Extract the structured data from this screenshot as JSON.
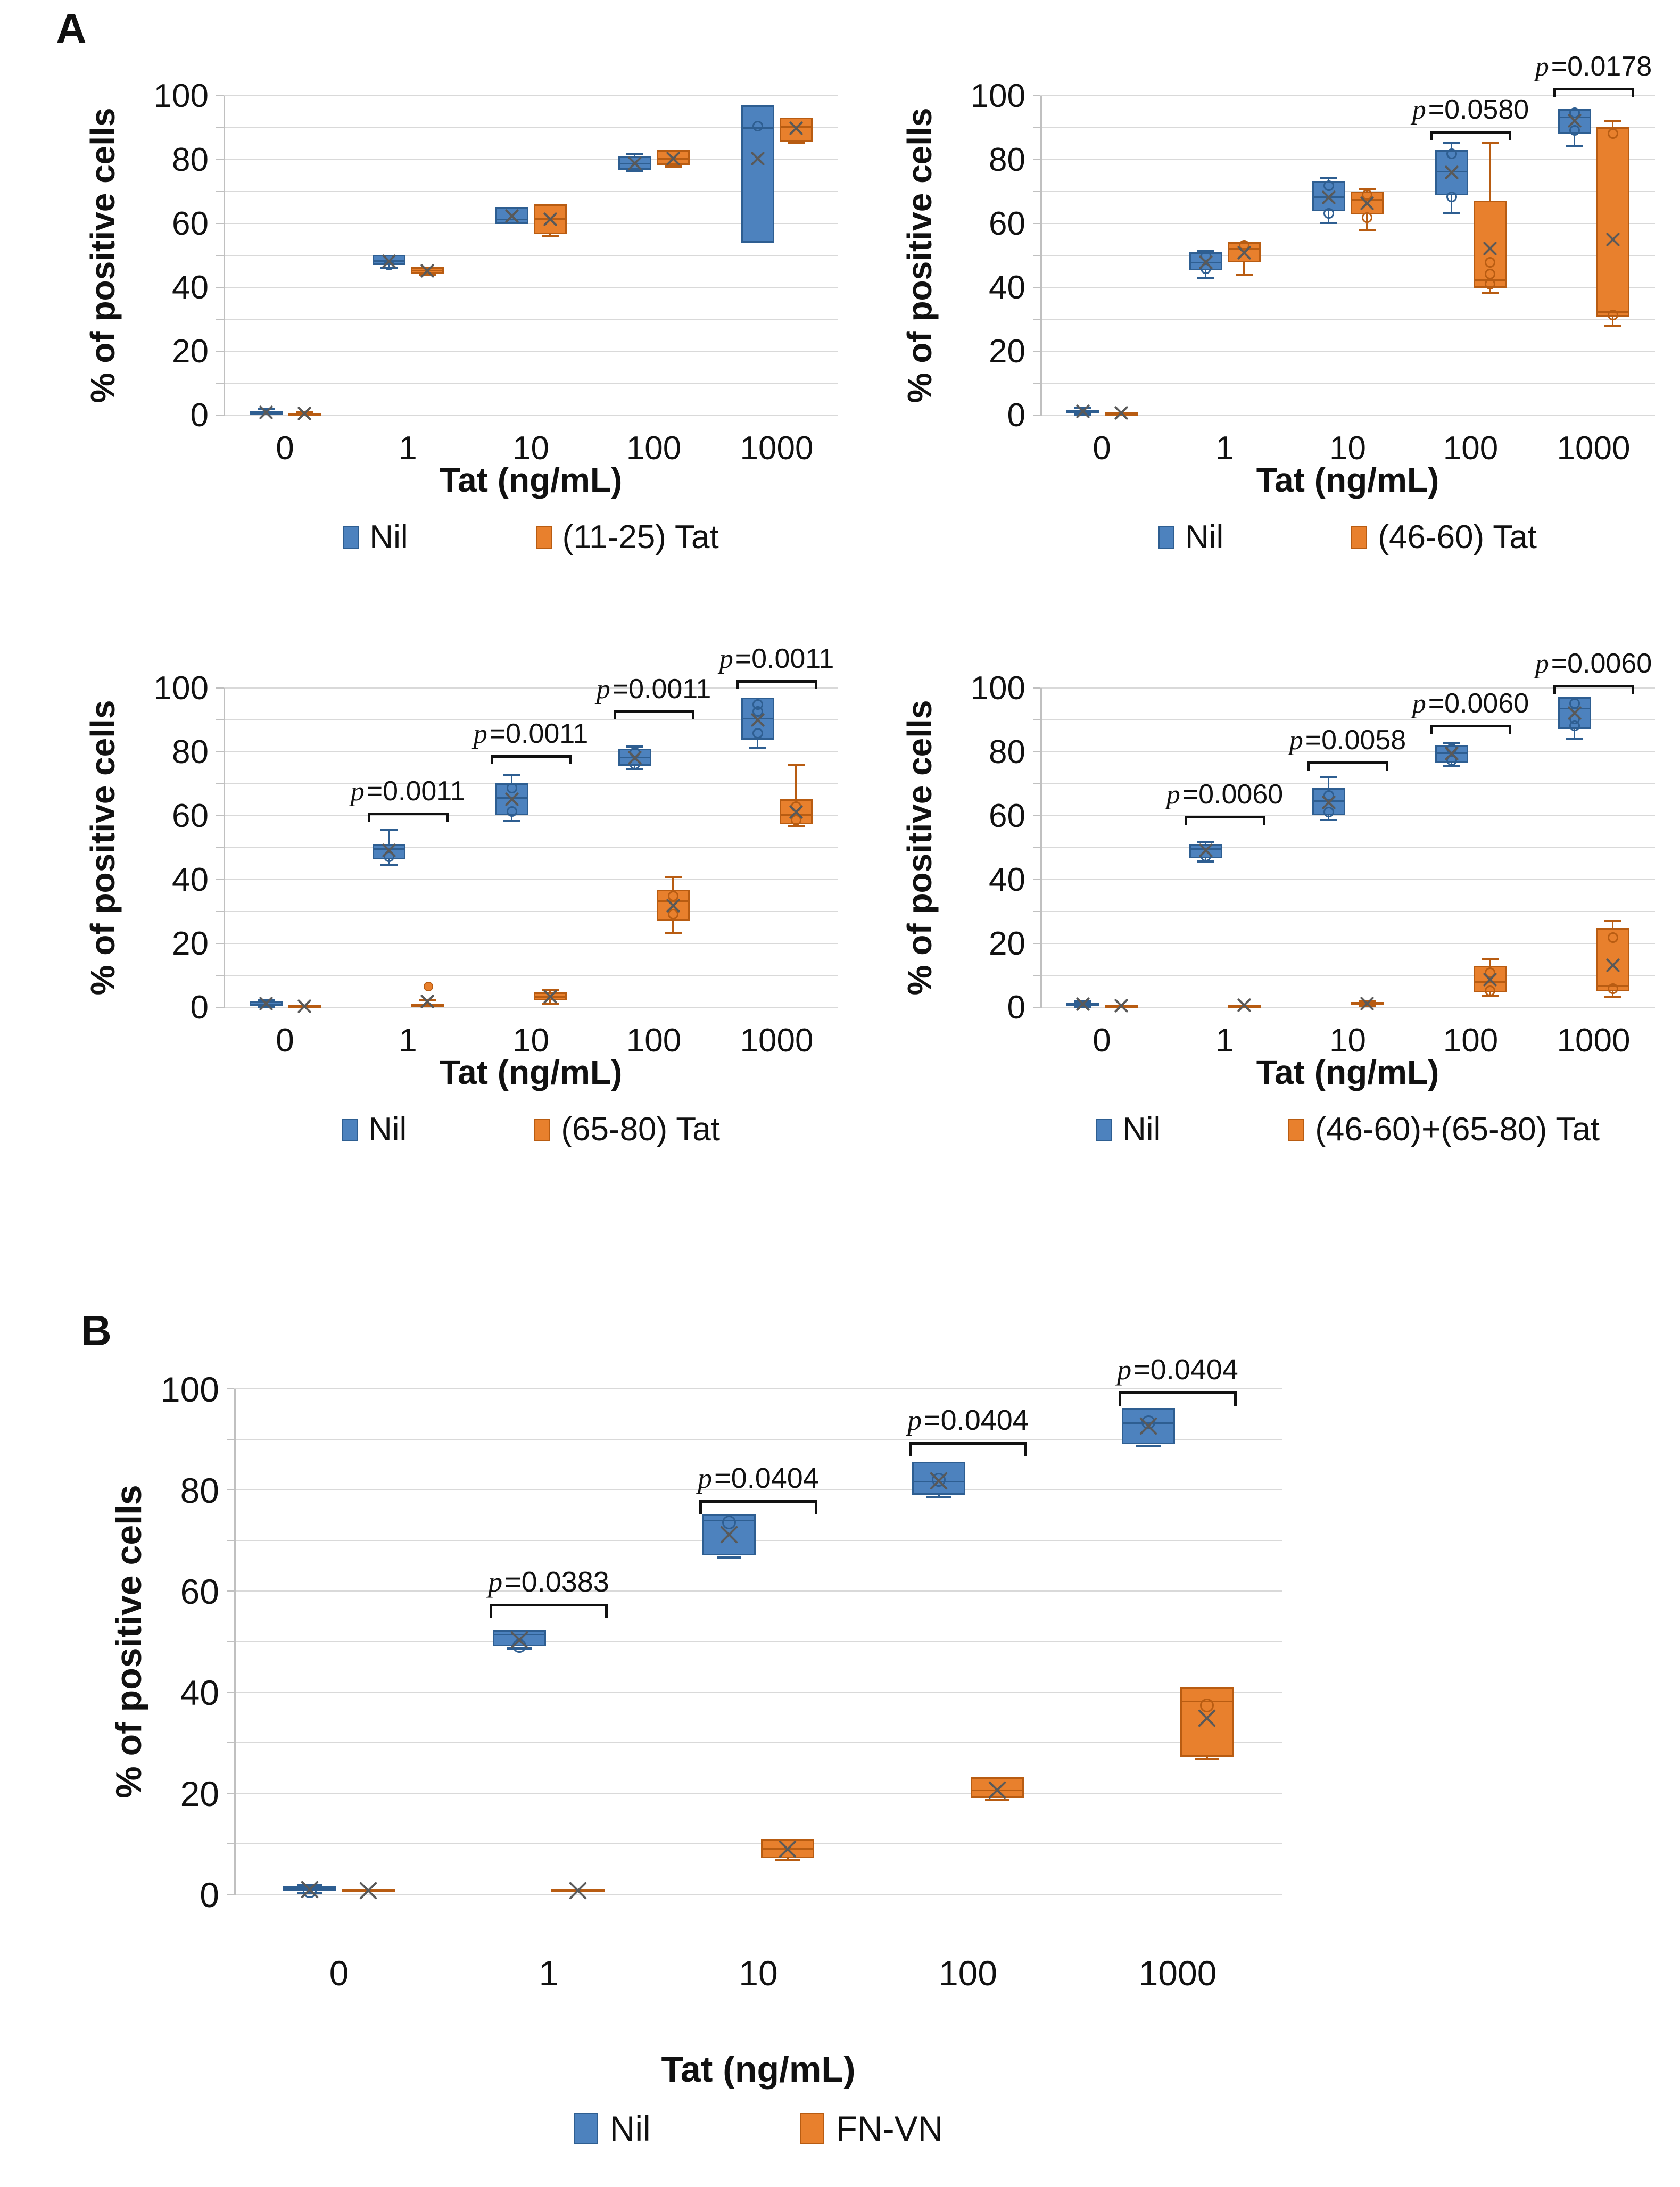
{
  "figure": {
    "section_a_label": "A",
    "section_b_label": "B"
  },
  "colors": {
    "blue_fill": "#4d82be",
    "blue_edge": "#2e5e91",
    "orange_fill": "#e8802d",
    "orange_edge": "#b85c12",
    "grid": "#d9d9d9",
    "axis_line": "#c0c0c0",
    "text": "#111111",
    "mean_marker": "#595959",
    "bracket": "#111111"
  },
  "chart_data": [
    {
      "id": "a1",
      "type": "box",
      "section": "A",
      "xlabel": "Tat (ng/mL)",
      "ylabel": "% of positive cells",
      "ylim": [
        0,
        100
      ],
      "yticks": [
        0,
        20,
        40,
        60,
        80,
        100
      ],
      "grid_step": 10,
      "legend_position": "bottom",
      "categories": [
        "0",
        "1",
        "10",
        "100",
        "1000"
      ],
      "series": [
        {
          "name": "Nil",
          "color": "blue",
          "boxes": [
            {
              "lo": 0.0,
              "q1": 0.2,
              "med": 0.8,
              "q3": 1.4,
              "hi": 1.9,
              "mean": 0.8,
              "points": [],
              "outliers": []
            },
            {
              "lo": 46.2,
              "q1": 47.0,
              "med": 48.3,
              "q3": 50.2,
              "hi": 50.2,
              "mean": 48.2,
              "points": [
                47.0
              ],
              "outliers": []
            },
            {
              "lo": 59.8,
              "q1": 59.8,
              "med": 61.2,
              "q3": 65.2,
              "hi": 65.2,
              "mean": 62.3,
              "points": [],
              "outliers": []
            },
            {
              "lo": 76.3,
              "q1": 76.8,
              "med": 78.8,
              "q3": 81.2,
              "hi": 81.6,
              "mean": 78.9,
              "points": [],
              "outliers": []
            },
            {
              "lo": 54.0,
              "q1": 54.0,
              "med": 90.0,
              "q3": 97.0,
              "hi": 97.0,
              "mean": 80.3,
              "points": [
                90.5
              ],
              "outliers": []
            }
          ]
        },
        {
          "name": "(11-25) Tat",
          "color": "orange",
          "boxes": [
            {
              "lo": 0.0,
              "q1": 0.1,
              "med": 0.4,
              "q3": 0.7,
              "hi": 1.0,
              "mean": 0.5,
              "points": [],
              "outliers": []
            },
            {
              "lo": 43.8,
              "q1": 44.4,
              "med": 45.3,
              "q3": 46.4,
              "hi": 46.4,
              "mean": 45.2,
              "points": [],
              "outliers": []
            },
            {
              "lo": 56.2,
              "q1": 56.6,
              "med": 61.5,
              "q3": 66.0,
              "hi": 66.0,
              "mean": 61.4,
              "points": [],
              "outliers": []
            },
            {
              "lo": 77.9,
              "q1": 78.3,
              "med": 80.3,
              "q3": 83.0,
              "hi": 83.0,
              "mean": 80.4,
              "points": [],
              "outliers": []
            },
            {
              "lo": 85.2,
              "q1": 85.6,
              "med": 90.2,
              "q3": 93.2,
              "hi": 93.2,
              "mean": 89.8,
              "points": [],
              "outliers": []
            }
          ]
        }
      ],
      "pvalues": []
    },
    {
      "id": "a2",
      "type": "box",
      "section": "A",
      "xlabel": "Tat (ng/mL)",
      "ylabel": "% of positive cells",
      "ylim": [
        0,
        100
      ],
      "yticks": [
        0,
        20,
        40,
        60,
        80,
        100
      ],
      "grid_step": 10,
      "legend_position": "bottom",
      "categories": [
        "0",
        "1",
        "10",
        "100",
        "1000"
      ],
      "series": [
        {
          "name": "Nil",
          "color": "blue",
          "boxes": [
            {
              "lo": 0.2,
              "q1": 0.5,
              "med": 1.1,
              "q3": 1.7,
              "hi": 2.1,
              "mean": 1.1,
              "points": [],
              "outliers": []
            },
            {
              "lo": 43.0,
              "q1": 45.4,
              "med": 47.8,
              "q3": 51.0,
              "hi": 51.4,
              "mean": 47.9,
              "points": [
                49.9,
                45.9
              ],
              "outliers": []
            },
            {
              "lo": 60.2,
              "q1": 63.8,
              "med": 68.2,
              "q3": 73.4,
              "hi": 74.2,
              "mean": 68.2,
              "points": [
                71.8,
                63.2
              ],
              "outliers": []
            },
            {
              "lo": 63.2,
              "q1": 68.8,
              "med": 76.2,
              "q3": 83.0,
              "hi": 85.2,
              "mean": 76.0,
              "points": [
                81.8,
                68.4
              ],
              "outliers": []
            },
            {
              "lo": 84.2,
              "q1": 88.2,
              "med": 93.2,
              "q3": 95.8,
              "hi": 95.8,
              "mean": 92.1,
              "points": [
                94.6,
                89.2
              ],
              "outliers": []
            }
          ]
        },
        {
          "name": "(46-60) Tat",
          "color": "orange",
          "boxes": [
            {
              "lo": 0.0,
              "q1": 0.2,
              "med": 0.5,
              "q3": 0.9,
              "hi": 1.1,
              "mean": 0.6,
              "points": [],
              "outliers": []
            },
            {
              "lo": 44.0,
              "q1": 47.9,
              "med": 52.1,
              "q3": 54.2,
              "hi": 54.2,
              "mean": 50.9,
              "points": [
                53.2
              ],
              "outliers": []
            },
            {
              "lo": 57.8,
              "q1": 62.8,
              "med": 67.4,
              "q3": 70.0,
              "hi": 70.6,
              "mean": 66.3,
              "points": [
                69.0,
                61.8
              ],
              "outliers": []
            },
            {
              "lo": 38.4,
              "q1": 39.8,
              "med": 42.2,
              "q3": 67.2,
              "hi": 85.2,
              "mean": 52.2,
              "points": [
                47.8,
                44.2,
                41.0
              ],
              "outliers": []
            },
            {
              "lo": 27.8,
              "q1": 30.8,
              "med": 32.2,
              "q3": 90.2,
              "hi": 92.2,
              "mean": 55.0,
              "points": [
                88.2,
                31.4
              ],
              "outliers": []
            }
          ]
        }
      ],
      "pvalues": [
        {
          "cat_index": 3,
          "label": "p=0.0580",
          "y": 89.0
        },
        {
          "cat_index": 4,
          "label": "p=0.0178",
          "y": 102.5
        }
      ]
    },
    {
      "id": "a3",
      "type": "box",
      "section": "A",
      "xlabel": "Tat (ng/mL)",
      "ylabel": "% of positive cells",
      "ylim": [
        0,
        100
      ],
      "yticks": [
        0,
        20,
        40,
        60,
        80,
        100
      ],
      "grid_step": 10,
      "legend_position": "bottom",
      "categories": [
        "0",
        "1",
        "10",
        "100",
        "1000"
      ],
      "series": [
        {
          "name": "Nil",
          "color": "blue",
          "boxes": [
            {
              "lo": 0.0,
              "q1": 0.3,
              "med": 1.0,
              "q3": 1.8,
              "hi": 2.3,
              "mean": 1.1,
              "points": [],
              "outliers": []
            },
            {
              "lo": 44.6,
              "q1": 46.4,
              "med": 49.6,
              "q3": 51.2,
              "hi": 55.6,
              "mean": 49.2,
              "points": [
                47.2
              ],
              "outliers": []
            },
            {
              "lo": 58.4,
              "q1": 60.2,
              "med": 65.6,
              "q3": 70.2,
              "hi": 72.6,
              "mean": 65.2,
              "points": [
                68.6,
                61.4
              ],
              "outliers": []
            },
            {
              "lo": 74.6,
              "q1": 75.6,
              "med": 78.2,
              "q3": 81.0,
              "hi": 81.6,
              "mean": 78.1,
              "points": [
                79.8,
                76.2
              ],
              "outliers": []
            },
            {
              "lo": 81.4,
              "q1": 83.8,
              "med": 90.4,
              "q3": 97.0,
              "hi": 97.0,
              "mean": 90.0,
              "points": [
                94.8,
                92.6,
                85.8
              ],
              "outliers": []
            }
          ]
        },
        {
          "name": "(65-80) Tat",
          "color": "orange",
          "boxes": [
            {
              "lo": 0.0,
              "q1": 0.1,
              "med": 0.3,
              "q3": 0.6,
              "hi": 0.8,
              "mean": 0.4,
              "points": [],
              "outliers": []
            },
            {
              "lo": 0.0,
              "q1": 0.2,
              "med": 0.7,
              "q3": 1.1,
              "hi": 2.3,
              "mean": 1.9,
              "points": [],
              "outliers": [
                6.8
              ]
            },
            {
              "lo": 1.2,
              "q1": 2.1,
              "med": 3.3,
              "q3": 4.6,
              "hi": 5.4,
              "mean": 3.3,
              "points": [],
              "outliers": []
            },
            {
              "lo": 23.2,
              "q1": 27.2,
              "med": 33.2,
              "q3": 36.8,
              "hi": 40.8,
              "mean": 31.8,
              "points": [
                34.8,
                29.2
              ],
              "outliers": []
            },
            {
              "lo": 56.8,
              "q1": 57.4,
              "med": 60.2,
              "q3": 65.2,
              "hi": 75.8,
              "mean": 61.2,
              "points": [
                62.8,
                58.6
              ],
              "outliers": []
            }
          ]
        }
      ],
      "pvalues": [
        {
          "cat_index": 1,
          "label": "p=0.0011",
          "y": 61.0
        },
        {
          "cat_index": 2,
          "label": "p=0.0011",
          "y": 79.0
        },
        {
          "cat_index": 3,
          "label": "p=0.0011",
          "y": 93.0
        },
        {
          "cat_index": 4,
          "label": "p=0.0011",
          "y": 102.5
        }
      ]
    },
    {
      "id": "a4",
      "type": "box",
      "section": "A",
      "xlabel": "Tat (ng/mL)",
      "ylabel": "% of positive cells",
      "ylim": [
        0,
        100
      ],
      "yticks": [
        0,
        20,
        40,
        60,
        80,
        100
      ],
      "grid_step": 10,
      "legend_position": "bottom",
      "categories": [
        "0",
        "1",
        "10",
        "100",
        "1000"
      ],
      "series": [
        {
          "name": "Nil",
          "color": "blue",
          "boxes": [
            {
              "lo": 0.2,
              "q1": 0.5,
              "med": 1.0,
              "q3": 1.5,
              "hi": 1.9,
              "mean": 1.0,
              "points": [],
              "outliers": []
            },
            {
              "lo": 45.6,
              "q1": 46.6,
              "med": 49.6,
              "q3": 51.2,
              "hi": 51.6,
              "mean": 49.1,
              "points": [
                47.4
              ],
              "outliers": []
            },
            {
              "lo": 58.6,
              "q1": 60.2,
              "med": 64.6,
              "q3": 68.6,
              "hi": 72.2,
              "mean": 64.2,
              "points": [
                66.4,
                61.2
              ],
              "outliers": []
            },
            {
              "lo": 75.6,
              "q1": 76.6,
              "med": 79.6,
              "q3": 82.0,
              "hi": 82.6,
              "mean": 79.5,
              "points": [
                81.0,
                77.4
              ],
              "outliers": []
            },
            {
              "lo": 84.2,
              "q1": 87.2,
              "med": 93.6,
              "q3": 97.2,
              "hi": 97.2,
              "mean": 92.2,
              "points": [
                95.2,
                90.4,
                88.2
              ],
              "outliers": []
            }
          ]
        },
        {
          "name": "(46-60)+(65-80) Tat",
          "color": "orange",
          "boxes": [
            {
              "lo": 0.0,
              "q1": 0.1,
              "med": 0.4,
              "q3": 0.7,
              "hi": 0.9,
              "mean": 0.5,
              "points": [],
              "outliers": []
            },
            {
              "lo": 0.0,
              "q1": 0.2,
              "med": 0.5,
              "q3": 0.8,
              "hi": 1.0,
              "mean": 0.6,
              "points": [],
              "outliers": []
            },
            {
              "lo": 0.5,
              "q1": 0.8,
              "med": 1.2,
              "q3": 1.6,
              "hi": 2.0,
              "mean": 1.2,
              "points": [],
              "outliers": []
            },
            {
              "lo": 3.6,
              "q1": 4.6,
              "med": 8.0,
              "q3": 13.0,
              "hi": 15.2,
              "mean": 8.6,
              "points": [
                10.8,
                5.2
              ],
              "outliers": []
            },
            {
              "lo": 3.2,
              "q1": 5.0,
              "med": 6.6,
              "q3": 24.8,
              "hi": 27.0,
              "mean": 13.2,
              "points": [
                21.8,
                5.8
              ],
              "outliers": []
            }
          ]
        }
      ],
      "pvalues": [
        {
          "cat_index": 1,
          "label": "p=0.0060",
          "y": 60.0
        },
        {
          "cat_index": 2,
          "label": "p=0.0058",
          "y": 77.0
        },
        {
          "cat_index": 3,
          "label": "p=0.0060",
          "y": 88.5
        },
        {
          "cat_index": 4,
          "label": "p=0.0060",
          "y": 101.0
        }
      ]
    },
    {
      "id": "b",
      "type": "box",
      "section": "B",
      "xlabel": "Tat (ng/mL)",
      "ylabel": "% of positive cells",
      "ylim": [
        0,
        100
      ],
      "yticks": [
        0,
        20,
        40,
        60,
        80,
        100
      ],
      "grid_step": 10,
      "legend_position": "bottom",
      "categories": [
        "0",
        "1",
        "10",
        "100",
        "1000"
      ],
      "series": [
        {
          "name": "Nil",
          "color": "blue",
          "boxes": [
            {
              "lo": 0.3,
              "q1": 0.6,
              "med": 1.1,
              "q3": 1.6,
              "hi": 1.9,
              "mean": 1.0,
              "points": [
                0.6
              ],
              "outliers": []
            },
            {
              "lo": 48.6,
              "q1": 49.0,
              "med": 51.4,
              "q3": 52.2,
              "hi": 52.2,
              "mean": 50.3,
              "points": [
                49.2
              ],
              "outliers": []
            },
            {
              "lo": 66.6,
              "q1": 67.0,
              "med": 74.0,
              "q3": 75.2,
              "hi": 75.2,
              "mean": 71.2,
              "points": [
                73.6
              ],
              "outliers": []
            },
            {
              "lo": 78.6,
              "q1": 79.0,
              "med": 81.6,
              "q3": 85.6,
              "hi": 85.6,
              "mean": 81.8,
              "points": [
                82.0
              ],
              "outliers": []
            },
            {
              "lo": 88.6,
              "q1": 89.0,
              "med": 93.2,
              "q3": 96.2,
              "hi": 96.2,
              "mean": 92.6,
              "points": [
                93.4
              ],
              "outliers": []
            }
          ]
        },
        {
          "name": "FN-VN",
          "color": "orange",
          "boxes": [
            {
              "lo": 0.2,
              "q1": 0.4,
              "med": 0.7,
              "q3": 1.1,
              "hi": 1.3,
              "mean": 0.7,
              "points": [],
              "outliers": []
            },
            {
              "lo": 0.2,
              "q1": 0.4,
              "med": 0.7,
              "q3": 1.1,
              "hi": 1.3,
              "mean": 0.7,
              "points": [],
              "outliers": []
            },
            {
              "lo": 6.8,
              "q1": 7.2,
              "med": 9.0,
              "q3": 11.0,
              "hi": 11.0,
              "mean": 9.0,
              "points": [],
              "outliers": []
            },
            {
              "lo": 18.6,
              "q1": 19.0,
              "med": 20.6,
              "q3": 23.2,
              "hi": 23.2,
              "mean": 20.6,
              "points": [],
              "outliers": []
            },
            {
              "lo": 26.8,
              "q1": 27.2,
              "med": 38.2,
              "q3": 41.0,
              "hi": 41.0,
              "mean": 34.8,
              "points": [
                37.4
              ],
              "outliers": []
            }
          ]
        }
      ],
      "pvalues": [
        {
          "cat_index": 1,
          "label": "p=0.0383",
          "y": 57.5
        },
        {
          "cat_index": 2,
          "label": "p=0.0404",
          "y": 78.0
        },
        {
          "cat_index": 3,
          "label": "p=0.0404",
          "y": 89.5
        },
        {
          "cat_index": 4,
          "label": "p=0.0404",
          "y": 99.5
        }
      ]
    }
  ]
}
